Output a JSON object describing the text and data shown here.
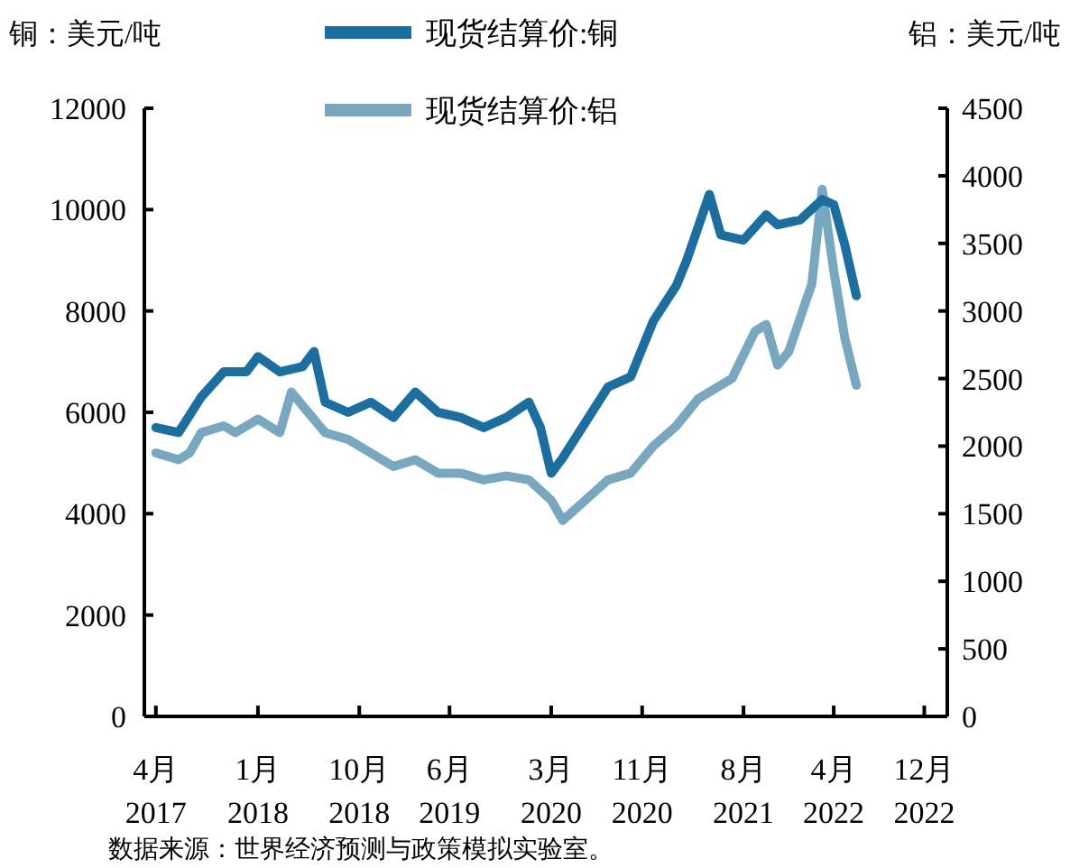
{
  "chart_data": {
    "type": "line",
    "ylabel": "铜：美元/吨",
    "y2label": "铝：美元/吨",
    "x": [
      "2017-04",
      "2017-06",
      "2017-08",
      "2017-10",
      "2017-12",
      "2018-01",
      "2018-03",
      "2018-05",
      "2018-06",
      "2018-07",
      "2018-09",
      "2018-11",
      "2019-01",
      "2019-03",
      "2019-05",
      "2019-07",
      "2019-09",
      "2019-11",
      "2020-01",
      "2020-02",
      "2020-03",
      "2020-04",
      "2020-06",
      "2020-08",
      "2020-10",
      "2020-12",
      "2021-02",
      "2021-03",
      "2021-05",
      "2021-06",
      "2021-08",
      "2021-10",
      "2021-11",
      "2022-01",
      "2022-03",
      "2022-04",
      "2022-05",
      "2022-06"
    ],
    "series": [
      {
        "name": "现货结算价:铜",
        "color": "#1a6fa0",
        "values": [
          5700,
          5600,
          6300,
          6800,
          6800,
          7100,
          6800,
          6900,
          7200,
          6200,
          6000,
          6200,
          5900,
          6400,
          6000,
          5900,
          5700,
          5900,
          6200,
          5700,
          4800,
          5100,
          5800,
          6500,
          6700,
          7800,
          8500,
          9000,
          10300,
          9500,
          9400,
          9900,
          9700,
          9800,
          10200,
          10100,
          9300,
          8300
        ]
      },
      {
        "name": "现货结算价:铝",
        "color": "#78a8c0",
        "axis": "y2",
        "x": [
          "2017-04",
          "2017-06",
          "2017-07",
          "2017-08",
          "2017-10",
          "2017-11",
          "2018-01",
          "2018-03",
          "2018-04",
          "2018-05",
          "2018-07",
          "2018-09",
          "2018-11",
          "2019-01",
          "2019-03",
          "2019-05",
          "2019-07",
          "2019-09",
          "2019-11",
          "2020-01",
          "2020-03",
          "2020-04",
          "2020-06",
          "2020-08",
          "2020-10",
          "2020-12",
          "2021-02",
          "2021-04",
          "2021-05",
          "2021-07",
          "2021-09",
          "2021-10",
          "2021-11",
          "2021-12",
          "2022-02",
          "2022-03",
          "2022-04",
          "2022-05",
          "2022-06"
        ],
        "values": [
          1950,
          1900,
          1950,
          2100,
          2150,
          2100,
          2200,
          2100,
          2400,
          2300,
          2100,
          2050,
          1950,
          1850,
          1900,
          1800,
          1800,
          1750,
          1780,
          1750,
          1600,
          1450,
          1600,
          1750,
          1800,
          2000,
          2150,
          2350,
          2400,
          2500,
          2850,
          2900,
          2600,
          2700,
          3200,
          3900,
          3300,
          2800,
          2450
        ]
      }
    ],
    "xlim": [
      "2017-03",
      "2023-02"
    ],
    "xticks": [
      {
        "value": "2017-04",
        "label": "4月\n2017"
      },
      {
        "value": "2018-01",
        "label": "1月\n2018"
      },
      {
        "value": "2018-10",
        "label": "10月\n2018"
      },
      {
        "value": "2019-06",
        "label": "6月\n2019"
      },
      {
        "value": "2020-03",
        "label": "3月\n2020"
      },
      {
        "value": "2020-11",
        "label": "11月\n2020"
      },
      {
        "value": "2021-08",
        "label": "8月\n2021"
      },
      {
        "value": "2022-04",
        "label": "4月\n2022"
      },
      {
        "value": "2022-12",
        "label": "12月\n2022"
      }
    ],
    "ylim": [
      0,
      12000
    ],
    "yticks": [
      0,
      2000,
      4000,
      6000,
      8000,
      10000,
      12000
    ],
    "y2lim": [
      0,
      4500
    ],
    "y2ticks": [
      0,
      500,
      1000,
      1500,
      2000,
      2500,
      3000,
      3500,
      4000,
      4500
    ],
    "grid": false,
    "legend": "top",
    "annotations": [
      "数据来源：世界经济预测与政策模拟实验室。"
    ]
  }
}
